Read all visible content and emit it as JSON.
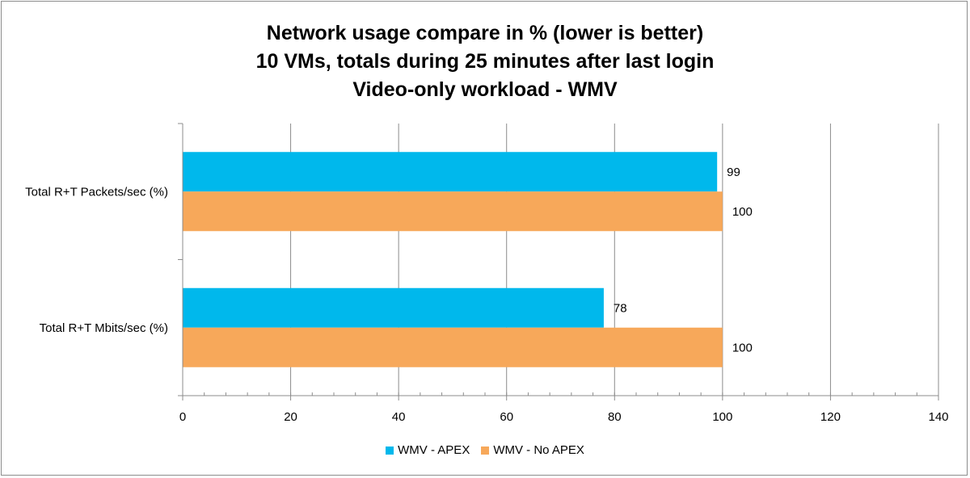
{
  "chart_data": {
    "type": "bar",
    "orientation": "horizontal",
    "title": [
      "Network usage compare in % (lower is better)",
      "10 VMs, totals during 25 minutes after last login",
      "Video-only workload - WMV"
    ],
    "categories": [
      "Total R+T Packets/sec (%)",
      "Total R+T Mbits/sec (%)"
    ],
    "series": [
      {
        "name": "WMV - APEX",
        "color": "#00b8ec",
        "values": [
          99,
          78
        ]
      },
      {
        "name": "WMV - No APEX",
        "color": "#f7a85a",
        "values": [
          100,
          100
        ]
      }
    ],
    "data_labels": [
      [
        "99",
        "78"
      ],
      [
        "100",
        "100"
      ]
    ],
    "xlim": [
      0,
      140
    ],
    "x_ticks": [
      0,
      20,
      40,
      60,
      80,
      100,
      120,
      140
    ],
    "x_tick_labels": [
      "0",
      "20",
      "40",
      "60",
      "80",
      "100",
      "120",
      "140"
    ],
    "grid": "vertical",
    "legend_position": "bottom"
  }
}
